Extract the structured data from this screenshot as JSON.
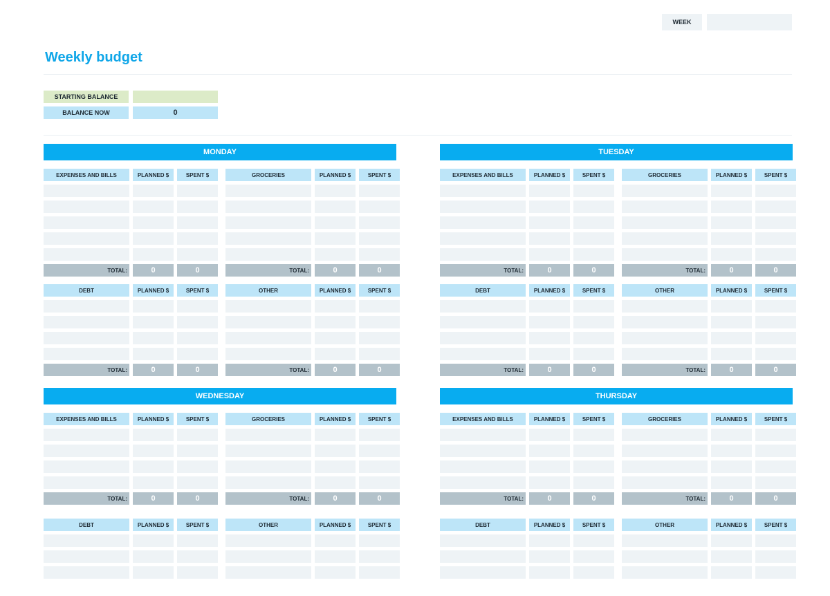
{
  "header": {
    "week_label": "WEEK",
    "week_value": "",
    "title": "Weekly budget"
  },
  "balance": {
    "starting_label": "STARTING BALANCE",
    "starting_value": "",
    "now_label": "BALANCE NOW",
    "now_value": "0"
  },
  "labels": {
    "planned": "PLANNED $",
    "spent": "SPENT $",
    "total": "TOTAL:"
  },
  "days": [
    {
      "name": "MONDAY",
      "sections": [
        {
          "title": "EXPENSES AND BILLS",
          "planned_total": "0",
          "spent_total": "0"
        },
        {
          "title": "GROCERIES",
          "planned_total": "0",
          "spent_total": "0"
        },
        {
          "title": "DEBT",
          "planned_total": "0",
          "spent_total": "0"
        },
        {
          "title": "OTHER",
          "planned_total": "0",
          "spent_total": "0"
        }
      ]
    },
    {
      "name": "TUESDAY",
      "sections": [
        {
          "title": "EXPENSES AND BILLS",
          "planned_total": "0",
          "spent_total": "0"
        },
        {
          "title": "GROCERIES",
          "planned_total": "0",
          "spent_total": "0"
        },
        {
          "title": "DEBT",
          "planned_total": "0",
          "spent_total": "0"
        },
        {
          "title": "OTHER",
          "planned_total": "0",
          "spent_total": "0"
        }
      ]
    },
    {
      "name": "WEDNESDAY",
      "sections": [
        {
          "title": "EXPENSES AND BILLS",
          "planned_total": "0",
          "spent_total": "0"
        },
        {
          "title": "GROCERIES",
          "planned_total": "0",
          "spent_total": "0"
        },
        {
          "title": "DEBT",
          "planned_total": "",
          "spent_total": ""
        },
        {
          "title": "OTHER",
          "planned_total": "",
          "spent_total": ""
        }
      ]
    },
    {
      "name": "THURSDAY",
      "sections": [
        {
          "title": "EXPENSES AND BILLS",
          "planned_total": "0",
          "spent_total": "0"
        },
        {
          "title": "GROCERIES",
          "planned_total": "0",
          "spent_total": "0"
        },
        {
          "title": "DEBT",
          "planned_total": "",
          "spent_total": ""
        },
        {
          "title": "OTHER",
          "planned_total": "",
          "spent_total": ""
        }
      ]
    }
  ]
}
